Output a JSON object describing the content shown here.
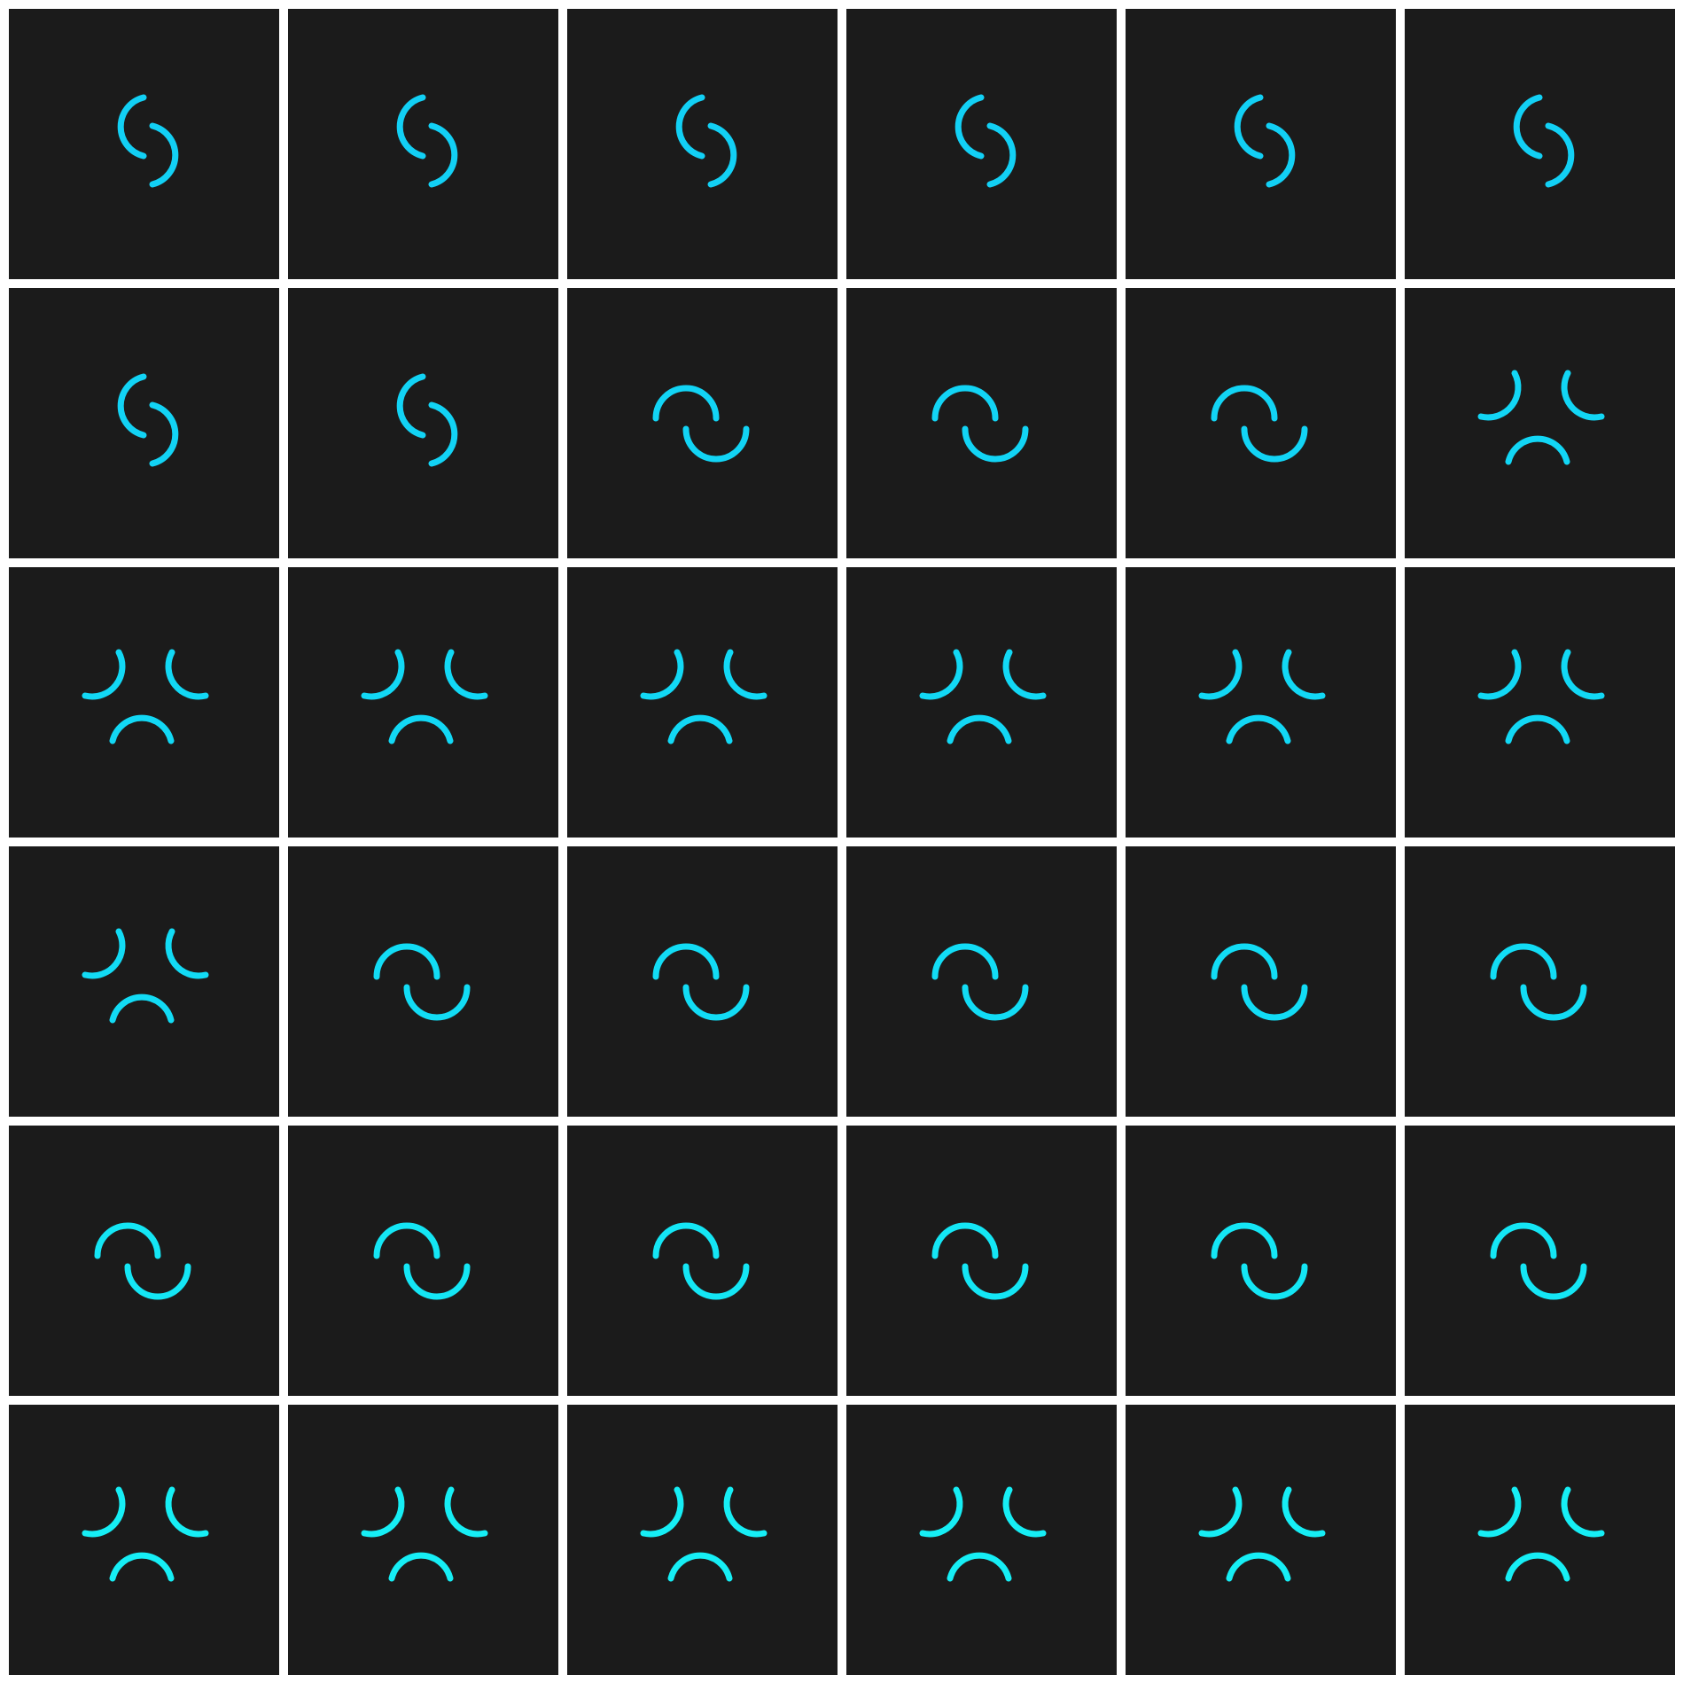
{
  "tiles": [
    {
      "icon": "s-spinner-icon",
      "color": "#12d0f5"
    },
    {
      "icon": "s-spinner-icon",
      "color": "#12d0f5"
    },
    {
      "icon": "s-spinner-icon",
      "color": "#12d0f5"
    },
    {
      "icon": "s-spinner-icon",
      "color": "#12d0f5"
    },
    {
      "icon": "s-spinner-icon",
      "color": "#12d0f5"
    },
    {
      "icon": "s-spinner-icon",
      "color": "#12d0f5"
    },
    {
      "icon": "s-spinner-icon",
      "color": "#12d3f5"
    },
    {
      "icon": "s-spinner-icon",
      "color": "#12d3f5"
    },
    {
      "icon": "wave-spinner-icon",
      "color": "#12d4f5"
    },
    {
      "icon": "wave-spinner-icon",
      "color": "#12d4f5"
    },
    {
      "icon": "wave-spinner-icon",
      "color": "#12d4f5"
    },
    {
      "icon": "triple-arc-spinner-icon",
      "color": "#12d6f5"
    },
    {
      "icon": "triple-arc-spinner-icon",
      "color": "#12d8f5"
    },
    {
      "icon": "triple-arc-spinner-icon",
      "color": "#12d8f5"
    },
    {
      "icon": "triple-arc-spinner-icon",
      "color": "#12d8f5"
    },
    {
      "icon": "triple-arc-spinner-icon",
      "color": "#12d8f5"
    },
    {
      "icon": "triple-arc-spinner-icon",
      "color": "#12d8f5"
    },
    {
      "icon": "triple-arc-spinner-icon",
      "color": "#12d8f5"
    },
    {
      "icon": "triple-arc-spinner-icon",
      "color": "#12dbf5"
    },
    {
      "icon": "wave-spinner-icon",
      "color": "#12dcf5"
    },
    {
      "icon": "wave-spinner-icon",
      "color": "#12dcf5"
    },
    {
      "icon": "wave-spinner-icon",
      "color": "#12dcf5"
    },
    {
      "icon": "wave-spinner-icon",
      "color": "#12dcf5"
    },
    {
      "icon": "wave-spinner-icon",
      "color": "#12dcf5"
    },
    {
      "icon": "wave-spinner-icon",
      "color": "#14e6f5"
    },
    {
      "icon": "wave-spinner-icon",
      "color": "#14e6f5"
    },
    {
      "icon": "wave-spinner-icon",
      "color": "#14e6f5"
    },
    {
      "icon": "wave-spinner-icon",
      "color": "#14e6f5"
    },
    {
      "icon": "wave-spinner-icon",
      "color": "#14e6f5"
    },
    {
      "icon": "wave-spinner-icon",
      "color": "#14e6f5"
    },
    {
      "icon": "triple-arc-spinner-icon",
      "color": "#16eef5"
    },
    {
      "icon": "triple-arc-spinner-icon",
      "color": "#16eef5"
    },
    {
      "icon": "triple-arc-spinner-icon",
      "color": "#16eef5"
    },
    {
      "icon": "triple-arc-spinner-icon",
      "color": "#16eef5"
    },
    {
      "icon": "triple-arc-spinner-icon",
      "color": "#16eef5"
    },
    {
      "icon": "triple-arc-spinner-icon",
      "color": "#16eef5"
    }
  ]
}
